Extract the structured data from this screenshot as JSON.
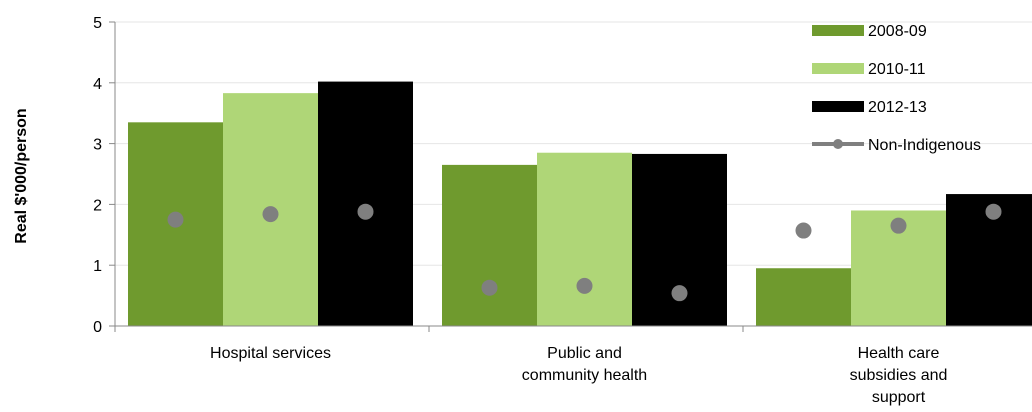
{
  "chart_data": {
    "type": "bar",
    "categories": [
      [
        "Hospital services"
      ],
      [
        "Public and",
        "community health"
      ],
      [
        "Health care",
        "subsidies and",
        "support"
      ]
    ],
    "series": [
      {
        "name": "2008-09",
        "values": [
          3.35,
          2.65,
          0.95
        ],
        "color": "#6f9a2e"
      },
      {
        "name": "2010-11",
        "values": [
          3.83,
          2.85,
          1.9
        ],
        "color": "#afd677"
      },
      {
        "name": "2012-13",
        "values": [
          4.02,
          2.83,
          2.17
        ],
        "color": "#000000"
      }
    ],
    "markers": {
      "name": "Non-Indigenous",
      "color": "#7f7f7f",
      "values": [
        [
          1.75,
          1.84,
          1.88
        ],
        [
          0.63,
          0.66,
          0.54
        ],
        [
          1.57,
          1.65,
          1.88
        ]
      ]
    },
    "ylabel": "Real $'000/person",
    "ylim": [
      0,
      5
    ],
    "yticks": [
      "0",
      "1",
      "2",
      "3",
      "4",
      "5"
    ],
    "grid": true,
    "legend": "top-right"
  }
}
